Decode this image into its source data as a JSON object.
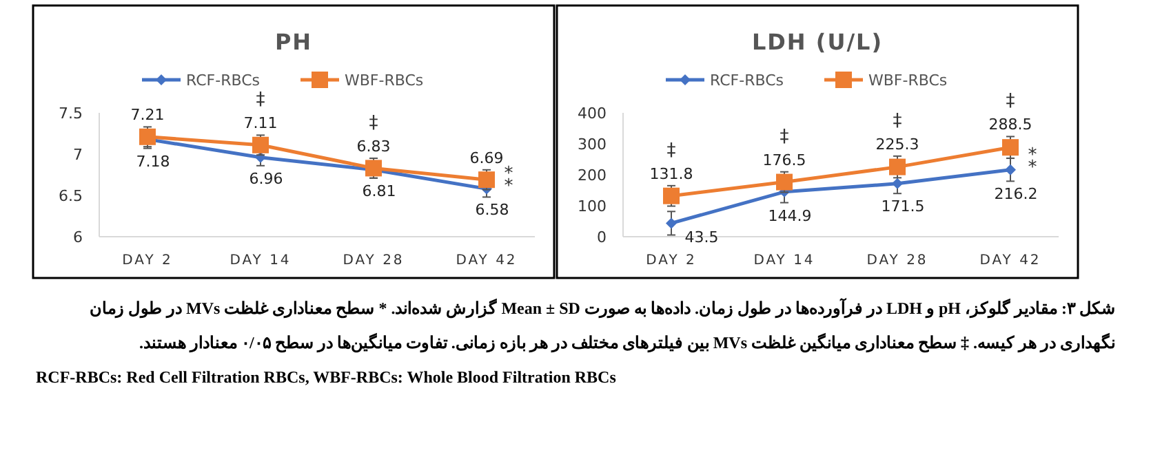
{
  "chart_data": [
    {
      "type": "line",
      "title": "PH",
      "categories": [
        "DAY 2",
        "DAY 14",
        "DAY 28",
        "DAY 42"
      ],
      "ylim": [
        6,
        7.5
      ],
      "yticks": [
        6,
        6.5,
        7,
        7.5
      ],
      "grid": false,
      "legend": "top",
      "marker": "diamond",
      "data_labels": true,
      "series": [
        {
          "name": "RCF-RBCs",
          "color": "#4472c4",
          "marker": "diamond",
          "values": [
            7.18,
            6.96,
            6.81,
            6.58
          ],
          "errors": [
            0.11,
            0.1,
            0.1,
            0.1
          ]
        },
        {
          "name": "WBF-RBCs",
          "color": "#ed7d31",
          "marker": "square",
          "values": [
            7.21,
            7.11,
            6.83,
            6.69
          ],
          "errors": [
            0.12,
            0.12,
            0.12,
            0.12
          ]
        }
      ],
      "annotations": [
        {
          "text": "‡",
          "x": "DAY 14",
          "y": 7.11
        },
        {
          "text": "‡",
          "x": "DAY 28",
          "y": 6.83
        },
        {
          "text": "*",
          "x": "DAY 42",
          "y": 6.58
        },
        {
          "text": "*",
          "x": "DAY 42",
          "y": 6.58
        },
        "شکل ۳: مقادیر گلوکز، pH و LDH در فرآورده‌ها در طول زمان. داده‌ها به صورت Mean ± SD گزارش شده‌اند. * سطح معناداری غلظت MVs در طول زمان نگهداری در هر کیسه. ‡ سطح معناداری میانگین غلظت MVs بین فیلترهای مختلف در هر بازه زمانی. تفاوت میانگین‌ها در سطح ۰/۰۵ معنادار هستند.",
        "RCF-RBCs: Red Cell Filtration RBCs, WBF-RBCs: Whole Blood Filtration RBCs"
      ]
    },
    {
      "type": "line",
      "title": "LDH (U/L)",
      "categories": [
        "DAY 2",
        "DAY 14",
        "DAY 28",
        "DAY 42"
      ],
      "ylim": [
        0,
        400
      ],
      "yticks": [
        0,
        100,
        200,
        300,
        400
      ],
      "grid": false,
      "legend": "top",
      "marker": "diamond",
      "data_labels": true,
      "series": [
        {
          "name": "RCF-RBCs",
          "color": "#4472c4",
          "marker": "diamond",
          "values": [
            43.5,
            144.9,
            171.5,
            216.2
          ],
          "errors": [
            38,
            35,
            32,
            37
          ]
        },
        {
          "name": "WBF-RBCs",
          "color": "#ed7d31",
          "marker": "square",
          "values": [
            131.8,
            176.5,
            225.3,
            288.5
          ],
          "errors": [
            33,
            33,
            35,
            35
          ]
        }
      ],
      "annotations": [
        {
          "text": "‡",
          "x": "DAY 2",
          "y": 131.8
        },
        {
          "text": "‡",
          "x": "DAY 14",
          "y": 176.5
        },
        {
          "text": "‡",
          "x": "DAY 28",
          "y": 225.3
        },
        {
          "text": "‡",
          "x": "DAY 42",
          "y": 288.5
        },
        {
          "text": "*",
          "x": "DAY 42",
          "y": 216.2
        },
        {
          "text": "*",
          "x": "DAY 42",
          "y": 216.2
        }
      ]
    }
  ]
}
